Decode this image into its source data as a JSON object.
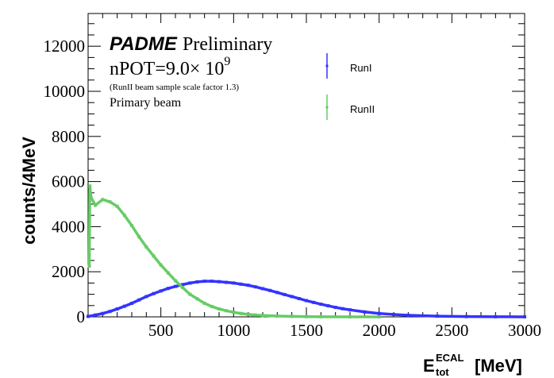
{
  "chart_data": {
    "type": "scatter",
    "title": "",
    "xlabel": "E_tot^ECAL [MeV]",
    "xlabel_main": "E",
    "xlabel_sup": "ECAL",
    "xlabel_sub": "tot",
    "xlabel_unit": "[MeV]",
    "ylabel": "counts/4MeV",
    "xlim": [
      0,
      3000
    ],
    "ylim": [
      0,
      13450
    ],
    "xticks": [
      500,
      1000,
      1500,
      2000,
      2500,
      3000
    ],
    "yticks": [
      0,
      2000,
      4000,
      6000,
      8000,
      10000,
      12000
    ],
    "grid": false,
    "legend_position": "top-right",
    "annotations": {
      "experiment": "PADME",
      "status": "Preliminary",
      "npot_base": "nPOT=9.0× 10",
      "npot_exp": "9",
      "scale_note": "(RunII beam sample scale factor 1.3)",
      "beam": "Primary beam"
    },
    "series": [
      {
        "name": "RunI",
        "color": "#3333ff",
        "x": [
          0,
          50,
          100,
          150,
          200,
          250,
          300,
          350,
          400,
          450,
          500,
          550,
          600,
          650,
          700,
          750,
          800,
          850,
          900,
          950,
          1000,
          1050,
          1100,
          1150,
          1200,
          1250,
          1300,
          1350,
          1400,
          1450,
          1500,
          1550,
          1600,
          1650,
          1700,
          1750,
          1800,
          1900,
          2000,
          2100,
          2200,
          2400,
          2600,
          2800,
          3000
        ],
        "y": [
          20,
          80,
          150,
          240,
          350,
          470,
          600,
          750,
          900,
          1030,
          1150,
          1260,
          1350,
          1430,
          1500,
          1550,
          1580,
          1580,
          1560,
          1530,
          1500,
          1450,
          1400,
          1330,
          1250,
          1170,
          1080,
          990,
          900,
          810,
          720,
          640,
          560,
          490,
          420,
          360,
          310,
          220,
          150,
          105,
          70,
          30,
          12,
          5,
          2
        ]
      },
      {
        "name": "RunII",
        "color": "#66cc66",
        "x": [
          8,
          12,
          20,
          50,
          100,
          150,
          200,
          250,
          300,
          350,
          400,
          450,
          500,
          550,
          600,
          650,
          700,
          750,
          800,
          850,
          900,
          950,
          1000,
          1050,
          1100,
          1150,
          1200,
          1300,
          1400,
          1500,
          1600,
          1800,
          2000
        ],
        "y": [
          2250,
          5800,
          5300,
          4950,
          5200,
          5100,
          4900,
          4500,
          4050,
          3550,
          3100,
          2700,
          2300,
          1950,
          1600,
          1300,
          1000,
          800,
          600,
          460,
          350,
          270,
          200,
          150,
          110,
          80,
          60,
          35,
          20,
          10,
          5,
          2,
          0
        ]
      }
    ]
  }
}
